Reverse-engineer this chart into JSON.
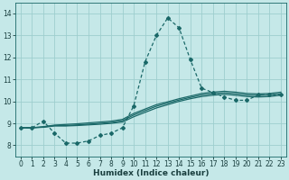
{
  "xlabel": "Humidex (Indice chaleur)",
  "bg_color": "#c5e8e8",
  "line_color": "#1a6868",
  "grid_color": "#9ecece",
  "xlim": [
    -0.5,
    23.5
  ],
  "ylim": [
    7.5,
    14.5
  ],
  "yticks": [
    8,
    9,
    10,
    11,
    12,
    13,
    14
  ],
  "xticks": [
    0,
    1,
    2,
    3,
    4,
    5,
    6,
    7,
    8,
    9,
    10,
    11,
    12,
    13,
    14,
    15,
    16,
    17,
    18,
    19,
    20,
    21,
    22,
    23
  ],
  "spike_x": [
    0,
    1,
    2,
    3,
    4,
    5,
    6,
    7,
    8,
    9,
    10,
    11,
    12,
    13,
    14,
    15,
    16,
    17,
    18,
    19,
    20,
    21,
    22,
    23
  ],
  "spike_y": [
    8.8,
    8.8,
    9.1,
    8.55,
    8.1,
    8.1,
    8.2,
    8.45,
    8.55,
    8.8,
    9.8,
    11.8,
    13.0,
    13.8,
    13.35,
    11.9,
    10.6,
    10.4,
    10.2,
    10.05,
    10.05,
    10.3,
    10.3,
    10.3
  ],
  "line1_x": [
    0,
    1,
    2,
    3,
    4,
    5,
    6,
    7,
    8,
    9,
    10,
    11,
    12,
    13,
    14,
    15,
    16,
    17,
    18,
    19,
    20,
    21,
    22,
    23
  ],
  "line1_y": [
    8.8,
    8.8,
    8.82,
    8.88,
    8.88,
    8.9,
    8.93,
    8.96,
    9.0,
    9.06,
    9.3,
    9.5,
    9.7,
    9.85,
    10.0,
    10.12,
    10.22,
    10.28,
    10.32,
    10.28,
    10.22,
    10.2,
    10.22,
    10.28
  ],
  "line2_x": [
    0,
    1,
    2,
    3,
    4,
    5,
    6,
    7,
    8,
    9,
    10,
    11,
    12,
    13,
    14,
    15,
    16,
    17,
    18,
    19,
    20,
    21,
    22,
    23
  ],
  "line2_y": [
    8.8,
    8.8,
    8.85,
    8.92,
    8.95,
    8.98,
    9.02,
    9.06,
    9.1,
    9.18,
    9.45,
    9.65,
    9.85,
    9.98,
    10.12,
    10.24,
    10.36,
    10.42,
    10.46,
    10.42,
    10.36,
    10.34,
    10.36,
    10.42
  ],
  "line3_x": [
    0,
    1,
    2,
    3,
    4,
    5,
    6,
    7,
    8,
    9,
    10,
    11,
    12,
    13,
    14,
    15,
    16,
    17,
    18,
    19,
    20,
    21,
    22,
    23
  ],
  "line3_y": [
    8.8,
    8.8,
    8.83,
    8.9,
    8.9,
    8.93,
    8.96,
    9.0,
    9.04,
    9.12,
    9.38,
    9.58,
    9.78,
    9.92,
    10.06,
    10.18,
    10.29,
    10.35,
    10.39,
    10.35,
    10.29,
    10.27,
    10.29,
    10.35
  ]
}
